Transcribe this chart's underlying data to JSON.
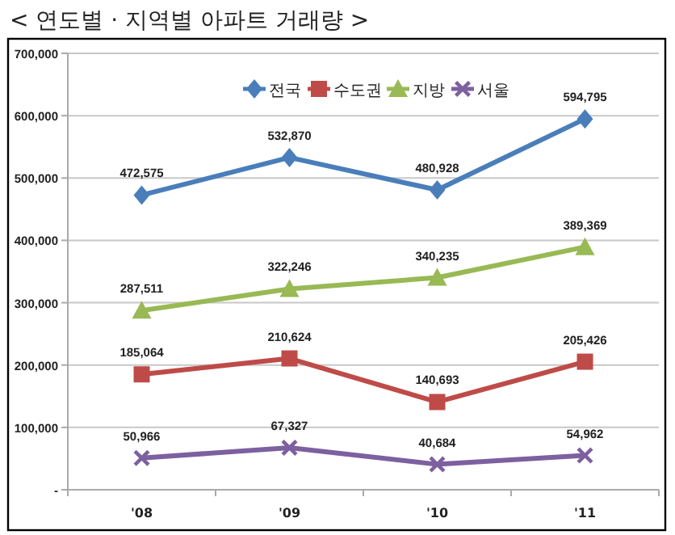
{
  "chart_data": {
    "type": "line",
    "title": "< 연도별 · 지역별 아파트 거래량 >",
    "categories": [
      "'08",
      "'09",
      "'10",
      "'11"
    ],
    "series": [
      {
        "name": "전국",
        "color": "#4a7ebb",
        "marker": "diamond",
        "values": [
          472575,
          532870,
          480928,
          594795
        ],
        "value_labels": [
          "472,575",
          "532,870",
          "480,928",
          "594,795"
        ]
      },
      {
        "name": "수도권",
        "color": "#be4b48",
        "marker": "square",
        "values": [
          185064,
          210624,
          140693,
          205426
        ],
        "value_labels": [
          "185,064",
          "210,624",
          "140,693",
          "205,426"
        ]
      },
      {
        "name": "지방",
        "color": "#98b954",
        "marker": "triangle",
        "values": [
          287511,
          322246,
          340235,
          389369
        ],
        "value_labels": [
          "287,511",
          "322,246",
          "340,235",
          "389,369"
        ]
      },
      {
        "name": "서울",
        "color": "#7d60a0",
        "marker": "cross",
        "values": [
          50966,
          67327,
          40684,
          54962
        ],
        "value_labels": [
          "50,966",
          "67,327",
          "40,684",
          "54,962"
        ]
      }
    ],
    "ylim": [
      0,
      700000
    ],
    "yticks": [
      {
        "value": 0,
        "label": "-"
      },
      {
        "value": 100000,
        "label": "100,000"
      },
      {
        "value": 200000,
        "label": "200,000"
      },
      {
        "value": 300000,
        "label": "300,000"
      },
      {
        "value": 400000,
        "label": "400,000"
      },
      {
        "value": 500000,
        "label": "500,000"
      },
      {
        "value": 600000,
        "label": "600,000"
      },
      {
        "value": 700000,
        "label": "700,000"
      }
    ],
    "grid": "y",
    "legend": "top",
    "line_style": "solid"
  }
}
